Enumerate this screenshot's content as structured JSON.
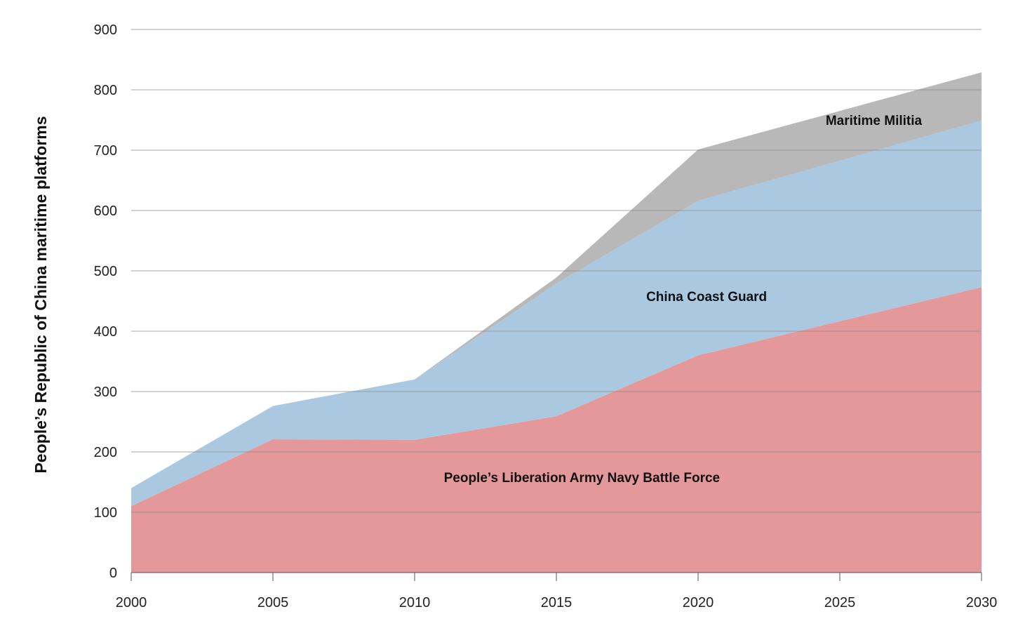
{
  "chart_data": {
    "type": "area",
    "stacked": true,
    "title": "",
    "xlabel": "",
    "ylabel": "People’s Republic of China maritime platforms",
    "x": [
      2000,
      2005,
      2010,
      2015,
      2020,
      2030
    ],
    "xticks": [
      "2000",
      "2005",
      "2010",
      "2015",
      "2020",
      "2025",
      "2030"
    ],
    "yticks": [
      "0",
      "100",
      "200",
      "300",
      "400",
      "500",
      "600",
      "700",
      "800",
      "900"
    ],
    "xlim": [
      2000,
      2030
    ],
    "ylim": [
      0,
      900
    ],
    "grid": "horizontal",
    "legend": "none",
    "series": [
      {
        "name": "People’s Liberation Army Navy Battle Force",
        "color": "#e4989a",
        "values": [
          110,
          221,
          220,
          259,
          360,
          473
        ]
      },
      {
        "name": "China Coast Guard",
        "color": "#aac9e1",
        "values": [
          30,
          55,
          100,
          220,
          256,
          276
        ]
      },
      {
        "name": "Maritime Militia",
        "color": "#b8b8b8",
        "values": [
          0,
          0,
          0,
          10,
          85,
          80
        ]
      }
    ]
  }
}
